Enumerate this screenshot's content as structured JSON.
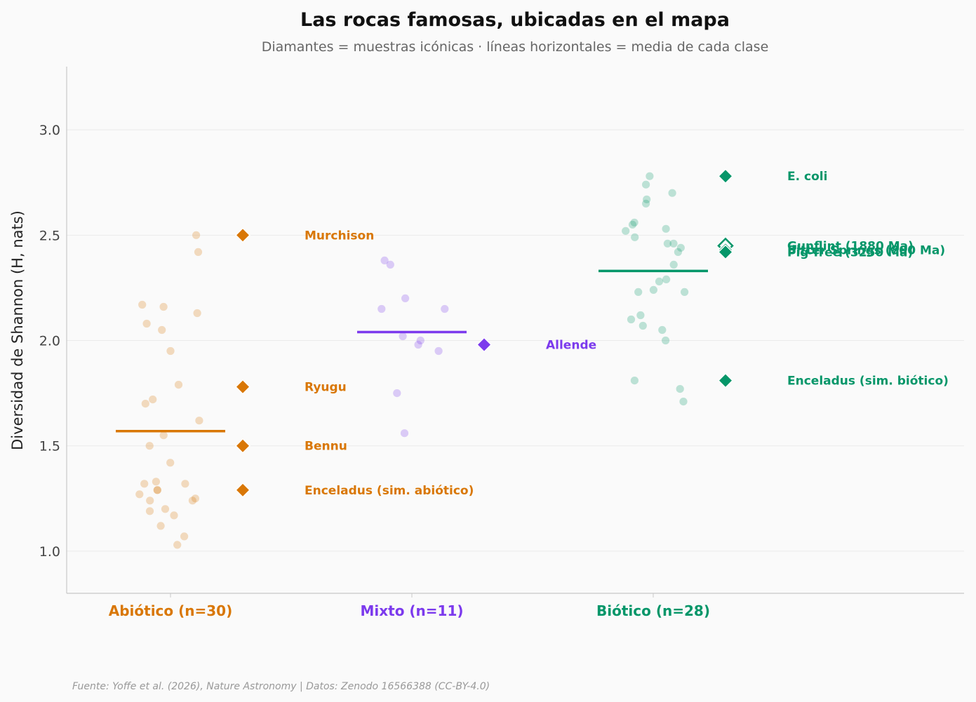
{
  "chart_data": {
    "type": "scatter",
    "title": "Las rocas famosas, ubicadas en el mapa",
    "subtitle": "Diamantes = muestras icónicas · líneas horizontales = media de cada clase",
    "ylabel": "Diversidad de Shannon (H, nats)",
    "xlabel": "",
    "ylim": [
      0.8,
      3.3
    ],
    "yticks": [
      "1.0",
      "1.5",
      "2.0",
      "2.5",
      "3.0"
    ],
    "ytick_values": [
      1.0,
      1.5,
      2.0,
      2.5,
      3.0
    ],
    "grid": "horizontal",
    "source": "Fuente: Yoffe et al. (2026), Nature Astronomy | Datos: Zenodo 16566388 (CC-BY-4.0)",
    "categories": [
      {
        "label": "Abiótico (n=30)",
        "color": "#d97706",
        "mean": 1.57,
        "values": [
          2.5,
          2.42,
          2.17,
          2.16,
          2.13,
          2.08,
          2.05,
          1.95,
          1.79,
          1.72,
          1.7,
          1.62,
          1.55,
          1.5,
          1.42,
          1.33,
          1.32,
          1.32,
          1.29,
          1.29,
          1.27,
          1.25,
          1.24,
          1.24,
          1.2,
          1.19,
          1.17,
          1.12,
          1.07,
          1.03
        ]
      },
      {
        "label": "Mixto (n=11)",
        "color": "#7c3aed",
        "mean": 2.04,
        "values": [
          2.38,
          2.36,
          2.2,
          2.15,
          2.15,
          2.02,
          2.0,
          1.98,
          1.95,
          1.75,
          1.56
        ]
      },
      {
        "label": "Biótico (n=28)",
        "color": "#059669",
        "mean": 2.33,
        "values": [
          2.78,
          2.74,
          2.7,
          2.67,
          2.65,
          2.56,
          2.55,
          2.53,
          2.52,
          2.49,
          2.46,
          2.46,
          2.44,
          2.42,
          2.36,
          2.29,
          2.28,
          2.24,
          2.23,
          2.23,
          2.12,
          2.1,
          2.07,
          2.05,
          2.0,
          1.81,
          1.77,
          1.71
        ]
      }
    ],
    "iconic_samples": [
      {
        "name": "Murchison",
        "category": 0,
        "value": 2.5,
        "marker": "filled"
      },
      {
        "name": "Ryugu",
        "category": 0,
        "value": 1.78,
        "marker": "filled"
      },
      {
        "name": "Bennu",
        "category": 0,
        "value": 1.5,
        "marker": "filled"
      },
      {
        "name": "Enceladus (sim. abiótico)",
        "category": 0,
        "value": 1.29,
        "marker": "filled"
      },
      {
        "name": "Allende",
        "category": 1,
        "value": 1.98,
        "marker": "filled"
      },
      {
        "name": "E. coli",
        "category": 2,
        "value": 2.78,
        "marker": "filled"
      },
      {
        "name": "Gunflint (1880 Ma)",
        "category": 2,
        "value": 2.45,
        "marker": "open"
      },
      {
        "name": "Bitter Springs (800 Ma)",
        "category": 2,
        "value": 2.43,
        "marker": "filled"
      },
      {
        "name": "Pig-Tree (3250 Ma)",
        "category": 2,
        "value": 2.42,
        "marker": "filled"
      },
      {
        "name": "Enceladus (sim. biótico)",
        "category": 2,
        "value": 1.81,
        "marker": "filled"
      }
    ]
  }
}
